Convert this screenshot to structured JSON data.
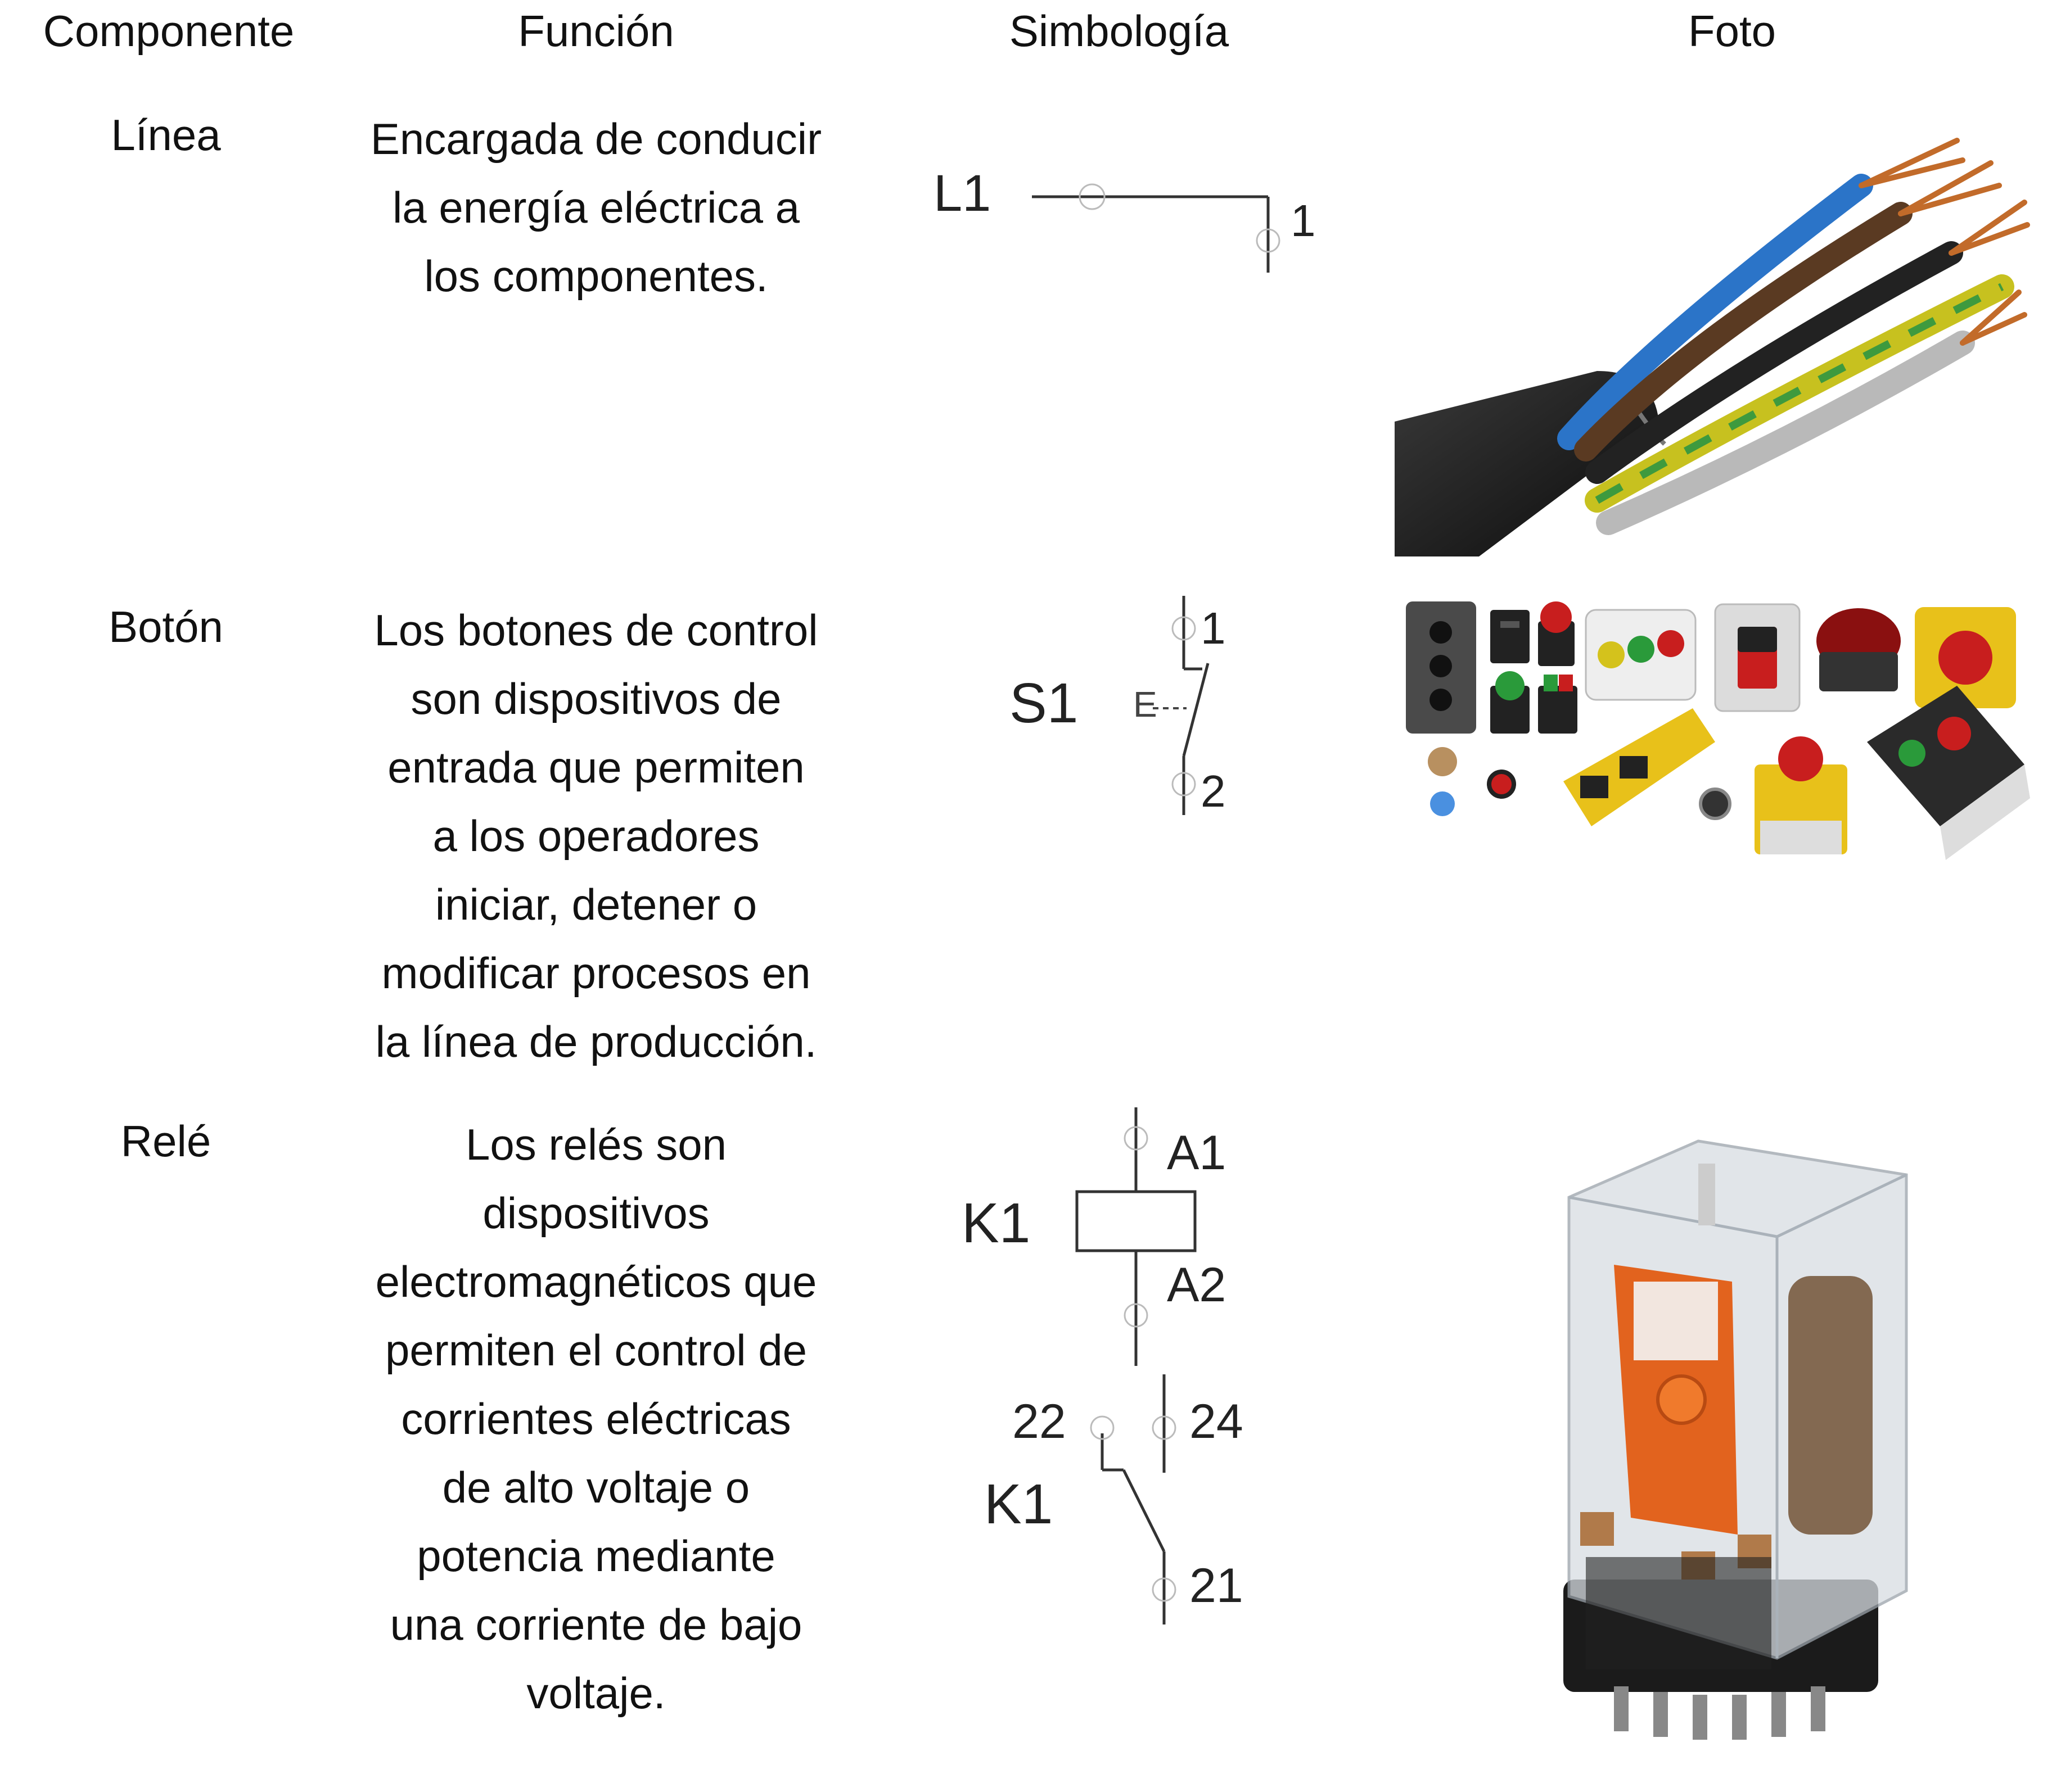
{
  "headers": {
    "component": "Componente",
    "function": "Función",
    "symbology": "Simbología",
    "photo": "Foto"
  },
  "rows": [
    {
      "component": "Línea",
      "function_lines": [
        "Encargada de conducir",
        "la energía eléctrica a",
        "los componentes."
      ],
      "symbol_labels": [
        "L1",
        "1"
      ],
      "photo_subject": "electrical-cable"
    },
    {
      "component": "Botón",
      "function_lines": [
        "Los botones de control",
        "son dispositivos de",
        "entrada que permiten",
        "a los operadores",
        "iniciar, detener o",
        "modificar procesos en",
        "la línea de producción."
      ],
      "symbol_labels": [
        "S1",
        "E",
        "1",
        "2"
      ],
      "photo_subject": "control-buttons"
    },
    {
      "component": "Relé",
      "function_lines": [
        "Los relés son",
        "dispositivos",
        "electromagnéticos que",
        "permiten el control de",
        "corrientes eléctricas",
        "de alto voltaje o",
        "potencia mediante",
        "una corriente de bajo",
        "voltaje."
      ],
      "symbol_labels": [
        "K1",
        "A1",
        "A2",
        "22",
        "24",
        "K1",
        "21"
      ],
      "photo_subject": "relay"
    }
  ]
}
